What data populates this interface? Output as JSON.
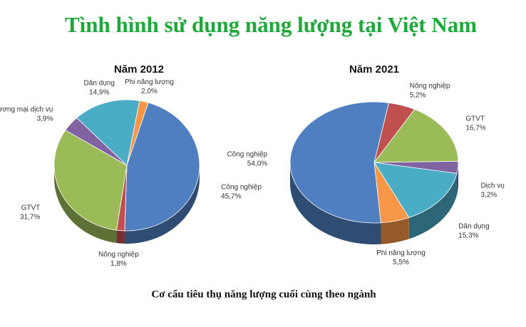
{
  "title": "Tình hình sử dụng năng lượng tại Việt Nam",
  "caption": "Cơ cấu tiêu thụ năng lượng cuối cùng theo ngành",
  "chart_data": [
    {
      "type": "pie",
      "title": "Năm 2012",
      "categories": [
        "Phi năng lượng",
        "Công nghiệp",
        "Nông nghiệp",
        "GTVT",
        "Thương mại dịch vụ",
        "Dân dụng"
      ],
      "values": [
        2.0,
        45.7,
        1.8,
        31.7,
        3.9,
        14.9
      ],
      "value_labels": [
        "2,0%",
        "45,7%",
        "1,8%",
        "31,7%",
        "3,9%",
        "14,9%"
      ],
      "colors": [
        "#f79646",
        "#4f7fc0",
        "#c0504d",
        "#9bbb59",
        "#8064a2",
        "#4bacc6"
      ]
    },
    {
      "type": "pie",
      "title": "Năm 2021",
      "categories": [
        "Nông nghiệp",
        "GTVT",
        "Dịch vụ",
        "Dân dụng",
        "Phi năng lượng",
        "Công nghiệp"
      ],
      "values": [
        5.2,
        16.7,
        3.2,
        15.3,
        5.5,
        54.0
      ],
      "value_labels": [
        "5,2%",
        "16,7%",
        "3,2%",
        "15,3%",
        "5,5%",
        "54,0%"
      ],
      "colors": [
        "#c0504d",
        "#9bbb59",
        "#8064a2",
        "#4bacc6",
        "#f79646",
        "#4f7fc0"
      ]
    }
  ]
}
